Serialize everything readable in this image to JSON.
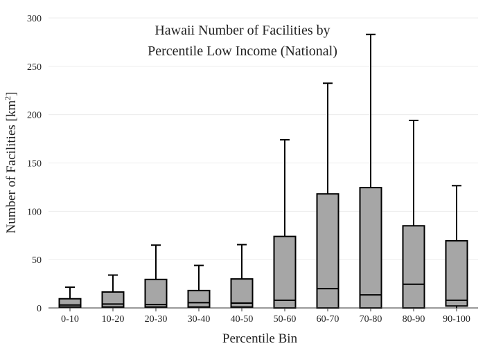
{
  "chart_data": {
    "type": "boxplot",
    "title_lines": [
      "Hawaii Number of Facilities by",
      "Percentile Low Income (National)"
    ],
    "xlabel": "Percentile Bin",
    "ylabel": "Number of Facilities",
    "ylabel_unit": "km",
    "ylabel_unit_sup": "2",
    "ylim": [
      0,
      300
    ],
    "yticks": [
      0,
      50,
      100,
      150,
      200,
      250,
      300
    ],
    "grid": true,
    "box_color": "#a6a6a6",
    "line_color": "#000000",
    "categories": [
      "0-10",
      "10-20",
      "20-30",
      "30-40",
      "40-50",
      "50-60",
      "60-70",
      "70-80",
      "80-90",
      "90-100"
    ],
    "boxes": [
      {
        "min": 0,
        "q1": 1,
        "median": 3,
        "q3": 9.5,
        "max": 21.5
      },
      {
        "min": 0,
        "q1": 1,
        "median": 4,
        "q3": 16.5,
        "max": 34
      },
      {
        "min": 0,
        "q1": 1,
        "median": 3.5,
        "q3": 29.5,
        "max": 65
      },
      {
        "min": 0,
        "q1": 1,
        "median": 5.5,
        "q3": 18,
        "max": 44
      },
      {
        "min": 0,
        "q1": 1,
        "median": 5,
        "q3": 30,
        "max": 65.5
      },
      {
        "min": 0,
        "q1": 0,
        "median": 8,
        "q3": 74,
        "max": 174
      },
      {
        "min": 0,
        "q1": 0,
        "median": 20,
        "q3": 118,
        "max": 232.5
      },
      {
        "min": 0,
        "q1": 0,
        "median": 13.5,
        "q3": 124.5,
        "max": 283
      },
      {
        "min": 0,
        "q1": 0,
        "median": 24.5,
        "q3": 85,
        "max": 194
      },
      {
        "min": 0,
        "q1": 2,
        "median": 8,
        "q3": 69.5,
        "max": 126.5
      }
    ]
  }
}
